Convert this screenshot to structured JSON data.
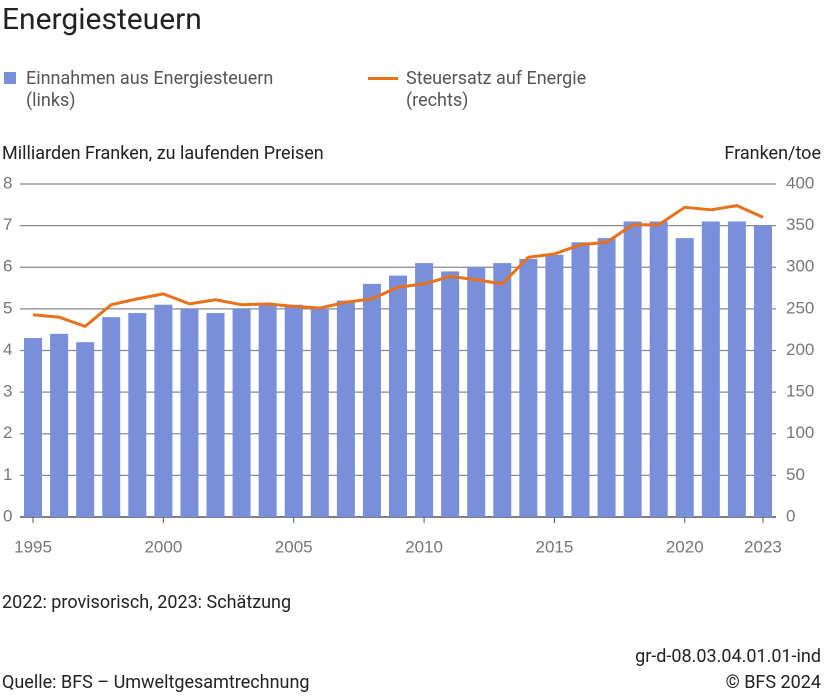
{
  "chart_data": {
    "type": "bar_line",
    "title": "Energiesteuern",
    "y_label": "Milliarden Franken, zu laufenden Preisen",
    "y2_label": "Franken/toe",
    "note": "2022: provisorisch, 2023: Schätzung",
    "source": "Quelle: BFS – Umweltgesamtrechnung",
    "chart_id": "gr-d-08.03.04.01.01-ind",
    "copyright": "© BFS 2024",
    "x": [
      1995,
      1996,
      1997,
      1998,
      1999,
      2000,
      2001,
      2002,
      2003,
      2004,
      2005,
      2006,
      2007,
      2008,
      2009,
      2010,
      2011,
      2012,
      2013,
      2014,
      2015,
      2016,
      2017,
      2018,
      2019,
      2020,
      2021,
      2022,
      2023
    ],
    "xlim": [
      1994.5,
      2023.5
    ],
    "xticks": [
      1995,
      2000,
      2005,
      2010,
      2015,
      2020,
      2023
    ],
    "ylim": [
      0,
      8
    ],
    "yticks": [
      0,
      1,
      2,
      3,
      4,
      5,
      6,
      7,
      8
    ],
    "y2lim": [
      0,
      400
    ],
    "y2ticks": [
      0,
      50,
      100,
      150,
      200,
      250,
      300,
      350,
      400
    ],
    "grid": true,
    "series": [
      {
        "name": "Einnahmen aus Energiesteuern (links)",
        "type": "bar",
        "color": "#7a8fdb",
        "values": [
          4.3,
          4.4,
          4.2,
          4.8,
          4.9,
          5.1,
          5.0,
          4.9,
          5.0,
          5.1,
          5.1,
          5.0,
          5.2,
          5.6,
          5.8,
          6.1,
          5.9,
          6.0,
          6.1,
          6.2,
          6.3,
          6.6,
          6.7,
          7.1,
          7.1,
          6.7,
          7.1,
          7.1,
          7.0
        ]
      },
      {
        "name": "Steuersatz auf Energie (rechts)",
        "type": "line",
        "axis": "y2",
        "color": "#e8711a",
        "values": [
          243,
          240,
          229,
          255,
          262,
          268,
          256,
          261,
          255,
          256,
          253,
          251,
          258,
          262,
          276,
          280,
          289,
          285,
          280,
          312,
          316,
          327,
          330,
          351,
          351,
          372,
          369,
          374,
          360
        ]
      }
    ]
  }
}
